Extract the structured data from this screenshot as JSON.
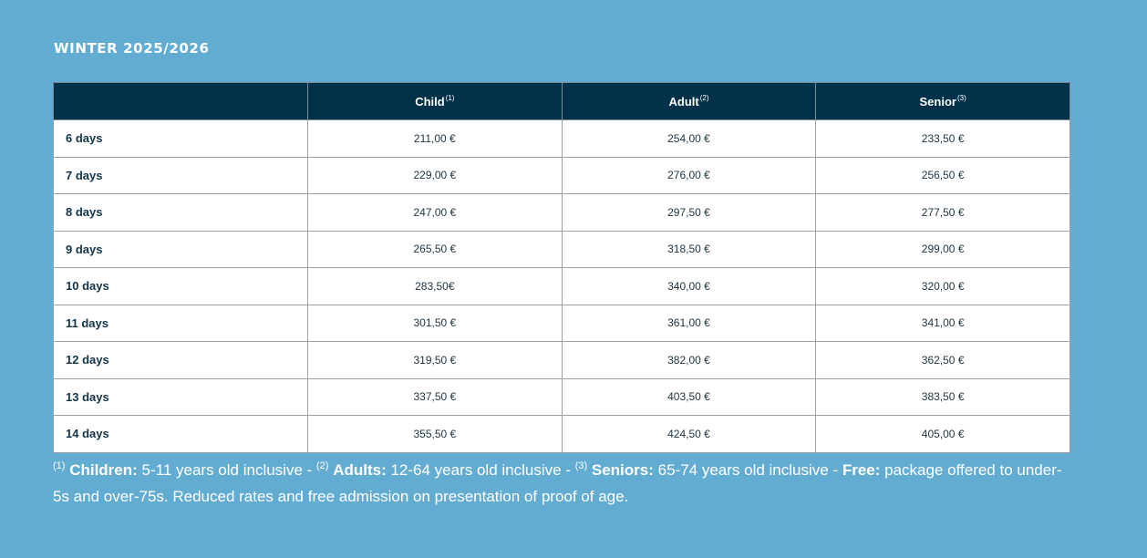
{
  "season_title": "WINTER 2025/2026",
  "table": {
    "headers": {
      "duration": "",
      "child": "Child",
      "child_note": "(1)",
      "adult": "Adult",
      "adult_note": "(2)",
      "senior": "Senior",
      "senior_note": "(3)"
    },
    "rows": [
      {
        "duration": "6 days",
        "child": "211,00 €",
        "adult": "254,00 €",
        "senior": "233,50 €"
      },
      {
        "duration": "7 days",
        "child": "229,00 €",
        "adult": "276,00 €",
        "senior": "256,50 €"
      },
      {
        "duration": "8 days",
        "child": "247,00 €",
        "adult": "297,50 €",
        "senior": "277,50 €"
      },
      {
        "duration": "9 days",
        "child": "265,50 €",
        "adult": "318,50 €",
        "senior": "299,00 €"
      },
      {
        "duration": "10 days",
        "child": "283,50€",
        "adult": "340,00 €",
        "senior": "320,00 €"
      },
      {
        "duration": "11 days",
        "child": "301,50 €",
        "adult": "361,00 €",
        "senior": "341,00 €"
      },
      {
        "duration": "12 days",
        "child": "319,50 €",
        "adult": "382,00 €",
        "senior": "362,50 €"
      },
      {
        "duration": "13 days",
        "child": "337,50 €",
        "adult": "403,50 €",
        "senior": "383,50 €"
      },
      {
        "duration": "14 days",
        "child": "355,50 €",
        "adult": "424,50 €",
        "senior": "405,00 €"
      }
    ]
  },
  "footnote": {
    "note1": "(1)",
    "children_label": "Children:",
    "children_text": " 5-11 years old inclusive - ",
    "note2": "(2)",
    "adults_label": "Adults:",
    "adults_text": " 12-64 years old inclusive - ",
    "note3": "(3)",
    "seniors_label": "Seniors:",
    "seniors_text": " 65-74 years old inclusive - ",
    "free_label": "Free:",
    "free_text": " package offered to under-5s and over-75s. Reduced rates and free admission on presentation of proof of age."
  },
  "colors": {
    "background": "#63acd1",
    "header_bg": "#02314a",
    "text_white": "#ffffff"
  }
}
